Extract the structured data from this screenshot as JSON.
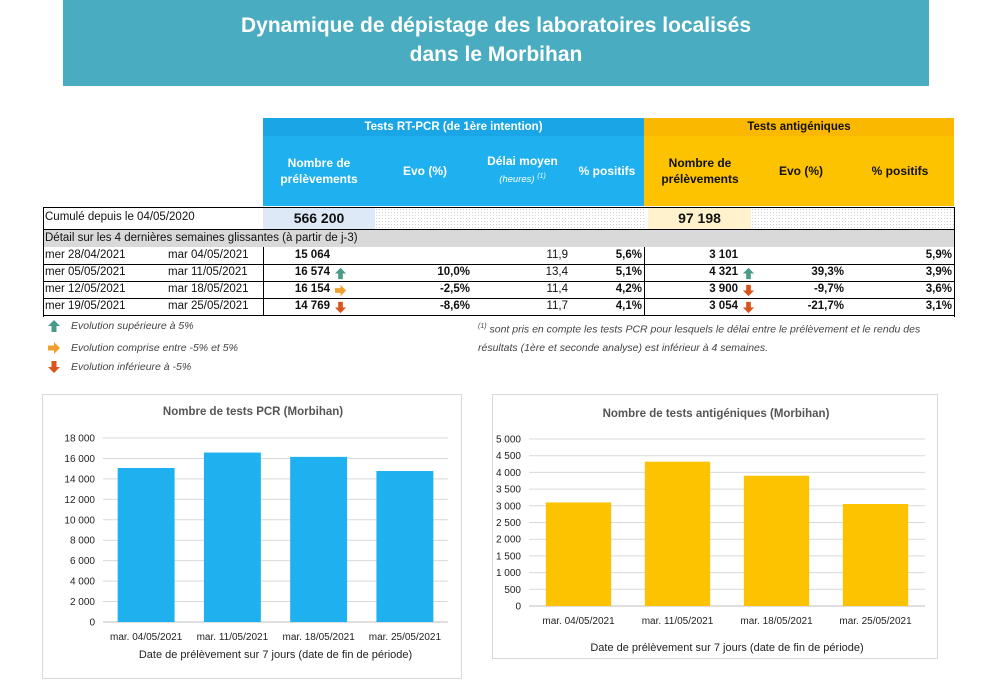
{
  "title": {
    "line1": "Dynamique de dépistage des laboratoires localisés",
    "line2": "dans le Morbihan"
  },
  "table": {
    "pcr_group": "Tests RT-PCR (de 1ère intention)",
    "ag_group": "Tests antigéniques",
    "pcr_headers": {
      "prelev": "Nombre de prélèvements",
      "evo": "Evo (%)",
      "delai": "Délai moyen",
      "delai_sub": "(heures)",
      "delai_sup": "(1)",
      "positifs": "% positifs"
    },
    "ag_headers": {
      "prelev": "Nombre de prélèvements",
      "evo": "Evo (%)",
      "positifs": "% positifs"
    },
    "cumul_label": "Cumulé depuis le 04/05/2020",
    "cumul_pcr": "566 200",
    "cumul_ag": "97 198",
    "detail_label": "Détail sur les 4 dernières semaines glissantes (à partir de j-3)",
    "rows": [
      {
        "start": "mer 28/04/2021",
        "end": "mar 04/05/2021",
        "pcr": "15 064",
        "pcr_arrow": "",
        "pcr_evo": "",
        "delai": "11,9",
        "pcr_pos": "5,6%",
        "ag": "3 101",
        "ag_arrow": "",
        "ag_evo": "",
        "ag_pos": "5,9%"
      },
      {
        "start": "mer 05/05/2021",
        "end": "mar 11/05/2021",
        "pcr": "16 574",
        "pcr_arrow": "up",
        "pcr_evo": "10,0%",
        "delai": "13,4",
        "pcr_pos": "5,1%",
        "ag": "4 321",
        "ag_arrow": "up",
        "ag_evo": "39,3%",
        "ag_pos": "3,9%"
      },
      {
        "start": "mer 12/05/2021",
        "end": "mar 18/05/2021",
        "pcr": "16 154",
        "pcr_arrow": "right",
        "pcr_evo": "-2,5%",
        "delai": "11,4",
        "pcr_pos": "4,2%",
        "ag": "3 900",
        "ag_arrow": "down",
        "ag_evo": "-9,7%",
        "ag_pos": "3,6%"
      },
      {
        "start": "mer 19/05/2021",
        "end": "mar 25/05/2021",
        "pcr": "14 769",
        "pcr_arrow": "down",
        "pcr_evo": "-8,6%",
        "delai": "11,7",
        "pcr_pos": "4,1%",
        "ag": "3 054",
        "ag_arrow": "down",
        "ag_evo": "-21,7%",
        "ag_pos": "3,1%"
      }
    ]
  },
  "legend": {
    "up": "Evolution supérieure à 5%",
    "right": "Evolution comprise entre -5% et 5%",
    "down": "Evolution inférieure à -5%"
  },
  "footnote": {
    "sup": "(1)",
    "text": "sont pris en compte les tests PCR pour lesquels le délai entre le prélèvement et le rendu des résultats (1ère et seconde analyse) est inférieur à 4 semaines."
  },
  "colors": {
    "banner": "#4aacc0",
    "pcr": "#1fb0ef",
    "ag": "#fdc300",
    "up_arrow": "#4a9a8a",
    "right_arrow": "#f0a030",
    "down_arrow": "#d9531e"
  },
  "chart_data": [
    {
      "type": "bar",
      "title": "Nombre de tests PCR (Morbihan)",
      "categories": [
        "mar. 04/05/2021",
        "mar. 11/05/2021",
        "mar. 18/05/2021",
        "mar. 25/05/2021"
      ],
      "values": [
        15064,
        16574,
        16154,
        14769
      ],
      "xlabel": "Date de prélèvement sur 7 jours (date de fin de période)",
      "ylabel": "",
      "ylim": [
        0,
        18000
      ],
      "yticks": [
        0,
        2000,
        4000,
        6000,
        8000,
        10000,
        12000,
        14000,
        16000,
        18000
      ],
      "ytick_labels": [
        "0",
        "2 000",
        "4 000",
        "6 000",
        "8 000",
        "10 000",
        "12 000",
        "14 000",
        "16 000",
        "18 000"
      ],
      "grid": true,
      "color": "#1fb0ef"
    },
    {
      "type": "bar",
      "title": "Nombre de tests antigéniques (Morbihan)",
      "categories": [
        "mar. 04/05/2021",
        "mar. 11/05/2021",
        "mar. 18/05/2021",
        "mar. 25/05/2021"
      ],
      "values": [
        3101,
        4321,
        3900,
        3054
      ],
      "xlabel": "Date de prélèvement sur 7 jours (date de fin de période)",
      "ylabel": "",
      "ylim": [
        0,
        5000
      ],
      "yticks": [
        0,
        500,
        1000,
        1500,
        2000,
        2500,
        3000,
        3500,
        4000,
        4500,
        5000
      ],
      "ytick_labels": [
        "0",
        "500",
        "1 000",
        "1 500",
        "2 000",
        "2 500",
        "3 000",
        "3 500",
        "4 000",
        "4 500",
        "5 000"
      ],
      "grid": true,
      "color": "#fdc300"
    }
  ]
}
